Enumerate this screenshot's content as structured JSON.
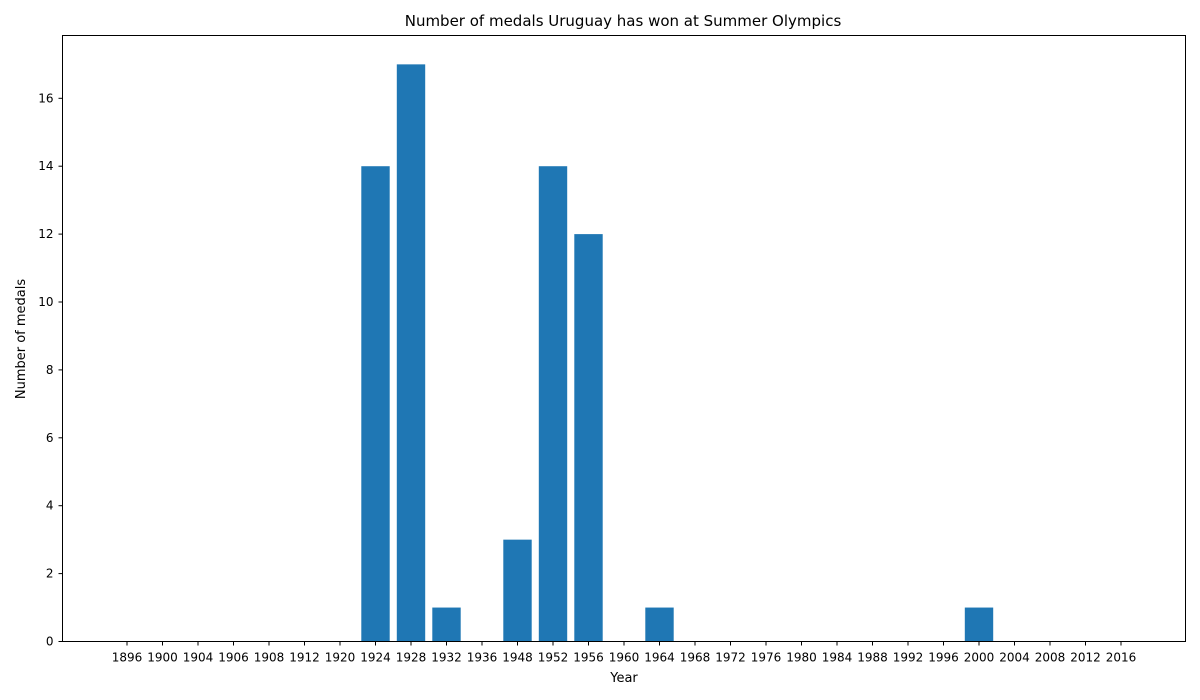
{
  "chart_data": {
    "type": "bar",
    "title": "Number of medals Uruguay has won at Summer Olympics",
    "xlabel": "Year",
    "ylabel": "Number of medals",
    "categories": [
      "1896",
      "1900",
      "1904",
      "1906",
      "1908",
      "1912",
      "1920",
      "1924",
      "1928",
      "1932",
      "1936",
      "1948",
      "1952",
      "1956",
      "1960",
      "1964",
      "1968",
      "1972",
      "1976",
      "1980",
      "1984",
      "1988",
      "1992",
      "1996",
      "2000",
      "2004",
      "2008",
      "2012",
      "2016"
    ],
    "values": [
      0,
      0,
      0,
      0,
      0,
      0,
      0,
      14,
      17,
      1,
      0,
      3,
      14,
      12,
      0,
      1,
      0,
      0,
      0,
      0,
      0,
      0,
      0,
      0,
      1,
      0,
      0,
      0,
      0
    ],
    "ylim": [
      0,
      17.85
    ],
    "yticks": [
      0,
      2,
      4,
      6,
      8,
      10,
      12,
      14,
      16
    ],
    "grid": false,
    "bar_color": "#1f77b4"
  }
}
